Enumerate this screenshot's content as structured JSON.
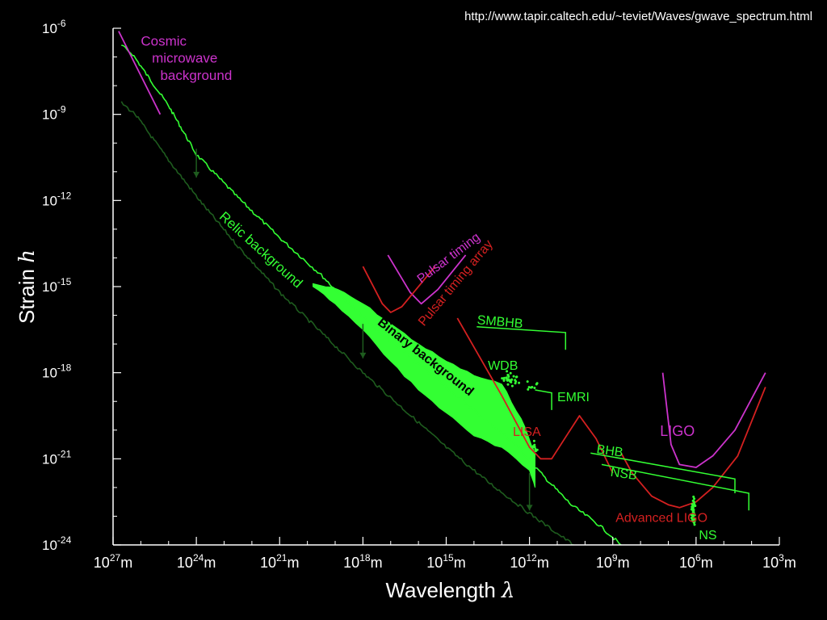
{
  "source_url": "http://www.tapir.caltech.edu/~teviet/Waves/gwave_spectrum.html",
  "colors": {
    "background": "#000000",
    "axis": "#ffffff",
    "green": "#33ff33",
    "dark_green": "#1e5c1e",
    "magenta": "#cc33cc",
    "red": "#d42020"
  },
  "chart_data": {
    "type": "line",
    "title": "",
    "xlabel": "Wavelength",
    "xlabel_symbol": "λ",
    "ylabel": "Strain",
    "ylabel_symbol": "h",
    "x_scale": "log",
    "y_scale": "log",
    "x_axis_reversed": true,
    "xlim_exp": [
      27,
      3
    ],
    "ylim_exp": [
      -24,
      -6
    ],
    "x_ticks": [
      {
        "base": "10",
        "exp": "27",
        "unit": "m",
        "value_exp": 27
      },
      {
        "base": "10",
        "exp": "24",
        "unit": "m",
        "value_exp": 24
      },
      {
        "base": "10",
        "exp": "21",
        "unit": "m",
        "value_exp": 21
      },
      {
        "base": "10",
        "exp": "18",
        "unit": "m",
        "value_exp": 18
      },
      {
        "base": "10",
        "exp": "15",
        "unit": "m",
        "value_exp": 15
      },
      {
        "base": "10",
        "exp": "12",
        "unit": "m",
        "value_exp": 12
      },
      {
        "base": "10",
        "exp": "9",
        "unit": "m",
        "value_exp": 9
      },
      {
        "base": "10",
        "exp": "6",
        "unit": "m",
        "value_exp": 6
      },
      {
        "base": "10",
        "exp": "3",
        "unit": "m",
        "value_exp": 3
      }
    ],
    "y_ticks": [
      {
        "base": "10",
        "exp": "-6",
        "value_exp": -6
      },
      {
        "base": "10",
        "exp": "-9",
        "value_exp": -9
      },
      {
        "base": "10",
        "exp": "-12",
        "value_exp": -12
      },
      {
        "base": "10",
        "exp": "-15",
        "value_exp": -15
      },
      {
        "base": "10",
        "exp": "-18",
        "value_exp": -18
      },
      {
        "base": "10",
        "exp": "-21",
        "value_exp": -21
      },
      {
        "base": "10",
        "exp": "-24",
        "value_exp": -24
      }
    ],
    "series": [
      {
        "key": "relic_upper",
        "color": "green",
        "x_exp": [
          26.7,
          26.3,
          25.8,
          25.0,
          24.0,
          22.5,
          21.0,
          19.5,
          18.5,
          17.5,
          16.5,
          15.5,
          14.5,
          13.5,
          12.5,
          11.5,
          10.5,
          9.5,
          8.7
        ],
        "y_exp": [
          -6.6,
          -6.9,
          -7.6,
          -8.7,
          -10.4,
          -11.9,
          -13.3,
          -14.6,
          -15.6,
          -16.5,
          -17.3,
          -18.1,
          -18.9,
          -19.7,
          -20.5,
          -21.6,
          -22.6,
          -23.3,
          -24.0
        ]
      },
      {
        "key": "relic_lower",
        "color": "dark_green",
        "x_exp": [
          26.7,
          26.2,
          25.0,
          23.8,
          22.5,
          21.0,
          19.5,
          18.0,
          16.5,
          15.0,
          13.5,
          12.0,
          11.0,
          10.4
        ],
        "y_exp": [
          -8.6,
          -9.0,
          -10.6,
          -12.1,
          -13.6,
          -15.2,
          -16.6,
          -18.0,
          -19.3,
          -20.6,
          -21.8,
          -22.9,
          -23.6,
          -24.0
        ]
      },
      {
        "key": "cmb",
        "color": "magenta",
        "x_exp": [
          26.8,
          25.3
        ],
        "y_exp": [
          -6.1,
          -9.0
        ]
      },
      {
        "key": "pulsar_timing",
        "color": "magenta",
        "x_exp": [
          17.1,
          16.3,
          15.9,
          15.3,
          14.3
        ],
        "y_exp": [
          -13.9,
          -15.2,
          -15.6,
          -15.1,
          -13.9
        ]
      },
      {
        "key": "pulsar_timing_array",
        "color": "red",
        "x_exp": [
          18.0,
          17.3,
          17.0,
          16.6,
          15.4
        ],
        "y_exp": [
          -14.3,
          -15.6,
          -15.9,
          -15.7,
          -14.3
        ]
      },
      {
        "key": "lisa",
        "color": "red",
        "x_exp": [
          14.6,
          13.0,
          12.0,
          11.6,
          11.2,
          10.6,
          10.2,
          9.6,
          9.0
        ],
        "y_exp": [
          -16.1,
          -18.8,
          -20.6,
          -21.0,
          -21.0,
          -20.1,
          -19.5,
          -20.3,
          -21.5
        ]
      },
      {
        "key": "ligo",
        "color": "magenta",
        "x_exp": [
          7.2,
          6.9,
          6.6,
          6.0,
          5.4,
          4.6,
          3.5
        ],
        "y_exp": [
          -18.0,
          -20.5,
          -21.2,
          -21.3,
          -20.9,
          -20.0,
          -18.0
        ]
      },
      {
        "key": "advanced_ligo",
        "color": "red",
        "x_exp": [
          8.7,
          8.3,
          7.6,
          7.0,
          6.6,
          6.0,
          5.4,
          4.5,
          3.5
        ],
        "y_exp": [
          -20.8,
          -21.5,
          -22.3,
          -22.6,
          -22.7,
          -22.5,
          -22.0,
          -20.9,
          -18.5
        ]
      }
    ],
    "binary_background": {
      "color": "green",
      "upper_x_exp": [
        19.8,
        18.9,
        18.0,
        17.0,
        16.0,
        15.0,
        14.0,
        13.0,
        12.3,
        11.8
      ],
      "upper_y_exp": [
        -14.9,
        -15.1,
        -15.6,
        -16.3,
        -17.0,
        -17.6,
        -18.1,
        -18.4,
        -19.6,
        -20.8
      ],
      "lower_x_exp": [
        11.8,
        12.0,
        13.0,
        14.0,
        15.0,
        16.0,
        17.0,
        18.0,
        19.0,
        19.8
      ],
      "lower_y_exp": [
        -22.0,
        -21.4,
        -20.6,
        -20.2,
        -19.4,
        -18.6,
        -17.6,
        -16.5,
        -15.6,
        -15.0
      ]
    },
    "brackets": [
      {
        "key": "smbhb",
        "color": "green",
        "x_exp": [
          13.9,
          10.7,
          10.7
        ],
        "y_exp": [
          -16.4,
          -16.6,
          -17.2
        ]
      },
      {
        "key": "emri",
        "color": "green",
        "x_exp": [
          11.8,
          11.2,
          11.2
        ],
        "y_exp": [
          -18.6,
          -18.7,
          -19.3
        ]
      },
      {
        "key": "bhb",
        "color": "green",
        "x_exp": [
          9.8,
          4.6,
          4.6
        ],
        "y_exp": [
          -20.8,
          -21.7,
          -22.2
        ]
      },
      {
        "key": "nsb",
        "color": "green",
        "x_exp": [
          9.4,
          4.1,
          4.1
        ],
        "y_exp": [
          -21.2,
          -22.2,
          -22.8
        ]
      }
    ],
    "arrows": [
      {
        "x_exp": 24.0,
        "y_from_exp": -10.2,
        "y_to_exp": -11.2
      },
      {
        "x_exp": 18.0,
        "y_from_exp": -16.3,
        "y_to_exp": -17.5
      },
      {
        "x_exp": 12.0,
        "y_from_exp": -21.5,
        "y_to_exp": -22.8
      }
    ],
    "scatter_clusters": [
      {
        "key": "wdb",
        "color": "green",
        "cx_exp": 12.7,
        "cy_exp": -18.2,
        "sx": 0.5,
        "sy": 0.35,
        "count": 30
      },
      {
        "key": "emri_dots",
        "color": "green",
        "cx_exp": 11.9,
        "cy_exp": -18.5,
        "sx": 0.3,
        "sy": 0.3,
        "count": 8
      },
      {
        "key": "lisa_dots",
        "color": "green",
        "cx_exp": 11.8,
        "cy_exp": -20.6,
        "sx": 0.15,
        "sy": 0.3,
        "count": 8
      },
      {
        "key": "ns_dots",
        "color": "green",
        "cx_exp": 6.1,
        "cy_exp": -22.8,
        "sx": 0.1,
        "sy": 0.6,
        "count": 45
      }
    ],
    "annotations": [
      {
        "text": "Cosmic",
        "color": "magenta",
        "x_exp": 26.0,
        "y_exp": -6.6,
        "rotate": 0,
        "size": 17,
        "anchor": "start"
      },
      {
        "text": "microwave",
        "color": "magenta",
        "x_exp": 25.6,
        "y_exp": -7.2,
        "rotate": 0,
        "size": 17,
        "anchor": "start"
      },
      {
        "text": "background",
        "color": "magenta",
        "x_exp": 25.3,
        "y_exp": -7.8,
        "rotate": 0,
        "size": 17,
        "anchor": "start"
      },
      {
        "text": "Pulsar timing",
        "color": "magenta",
        "x_exp": 15.9,
        "y_exp": -14.9,
        "rotate": -37,
        "size": 16,
        "anchor": "start"
      },
      {
        "text": "Pulsar timing array",
        "color": "red",
        "x_exp": 15.8,
        "y_exp": -16.4,
        "rotate": -50,
        "size": 16,
        "anchor": "start"
      },
      {
        "text": "Relic background",
        "color": "green",
        "x_exp": 23.2,
        "y_exp": -12.6,
        "rotate": 42,
        "size": 17,
        "anchor": "start"
      },
      {
        "text": "Binary background",
        "color": "black",
        "x_exp": 17.5,
        "y_exp": -16.3,
        "rotate": 38,
        "size": 16,
        "anchor": "start",
        "bold": true
      },
      {
        "text": "SMBHB",
        "color": "green",
        "x_exp": 13.9,
        "y_exp": -16.3,
        "rotate": 5,
        "size": 16,
        "anchor": "start"
      },
      {
        "text": "WDB",
        "color": "green",
        "x_exp": 13.5,
        "y_exp": -17.9,
        "rotate": 0,
        "size": 16,
        "anchor": "start"
      },
      {
        "text": "EMRI",
        "color": "green",
        "x_exp": 11.0,
        "y_exp": -19.0,
        "rotate": 0,
        "size": 16,
        "anchor": "start"
      },
      {
        "text": "LISA",
        "color": "red",
        "x_exp": 12.6,
        "y_exp": -20.2,
        "rotate": 0,
        "size": 16,
        "anchor": "start"
      },
      {
        "text": "BHB",
        "color": "green",
        "x_exp": 9.6,
        "y_exp": -20.8,
        "rotate": 8,
        "size": 16,
        "anchor": "start"
      },
      {
        "text": "NSB",
        "color": "green",
        "x_exp": 9.1,
        "y_exp": -21.6,
        "rotate": 8,
        "size": 16,
        "anchor": "start"
      },
      {
        "text": "LIGO",
        "color": "magenta",
        "x_exp": 7.3,
        "y_exp": -20.2,
        "rotate": 0,
        "size": 18,
        "anchor": "start"
      },
      {
        "text": "Advanced LIGO",
        "color": "red",
        "x_exp": 8.9,
        "y_exp": -23.2,
        "rotate": 0,
        "size": 16,
        "anchor": "start"
      },
      {
        "text": "NS",
        "color": "green",
        "x_exp": 5.9,
        "y_exp": -23.8,
        "rotate": 0,
        "size": 16,
        "anchor": "start"
      }
    ]
  }
}
